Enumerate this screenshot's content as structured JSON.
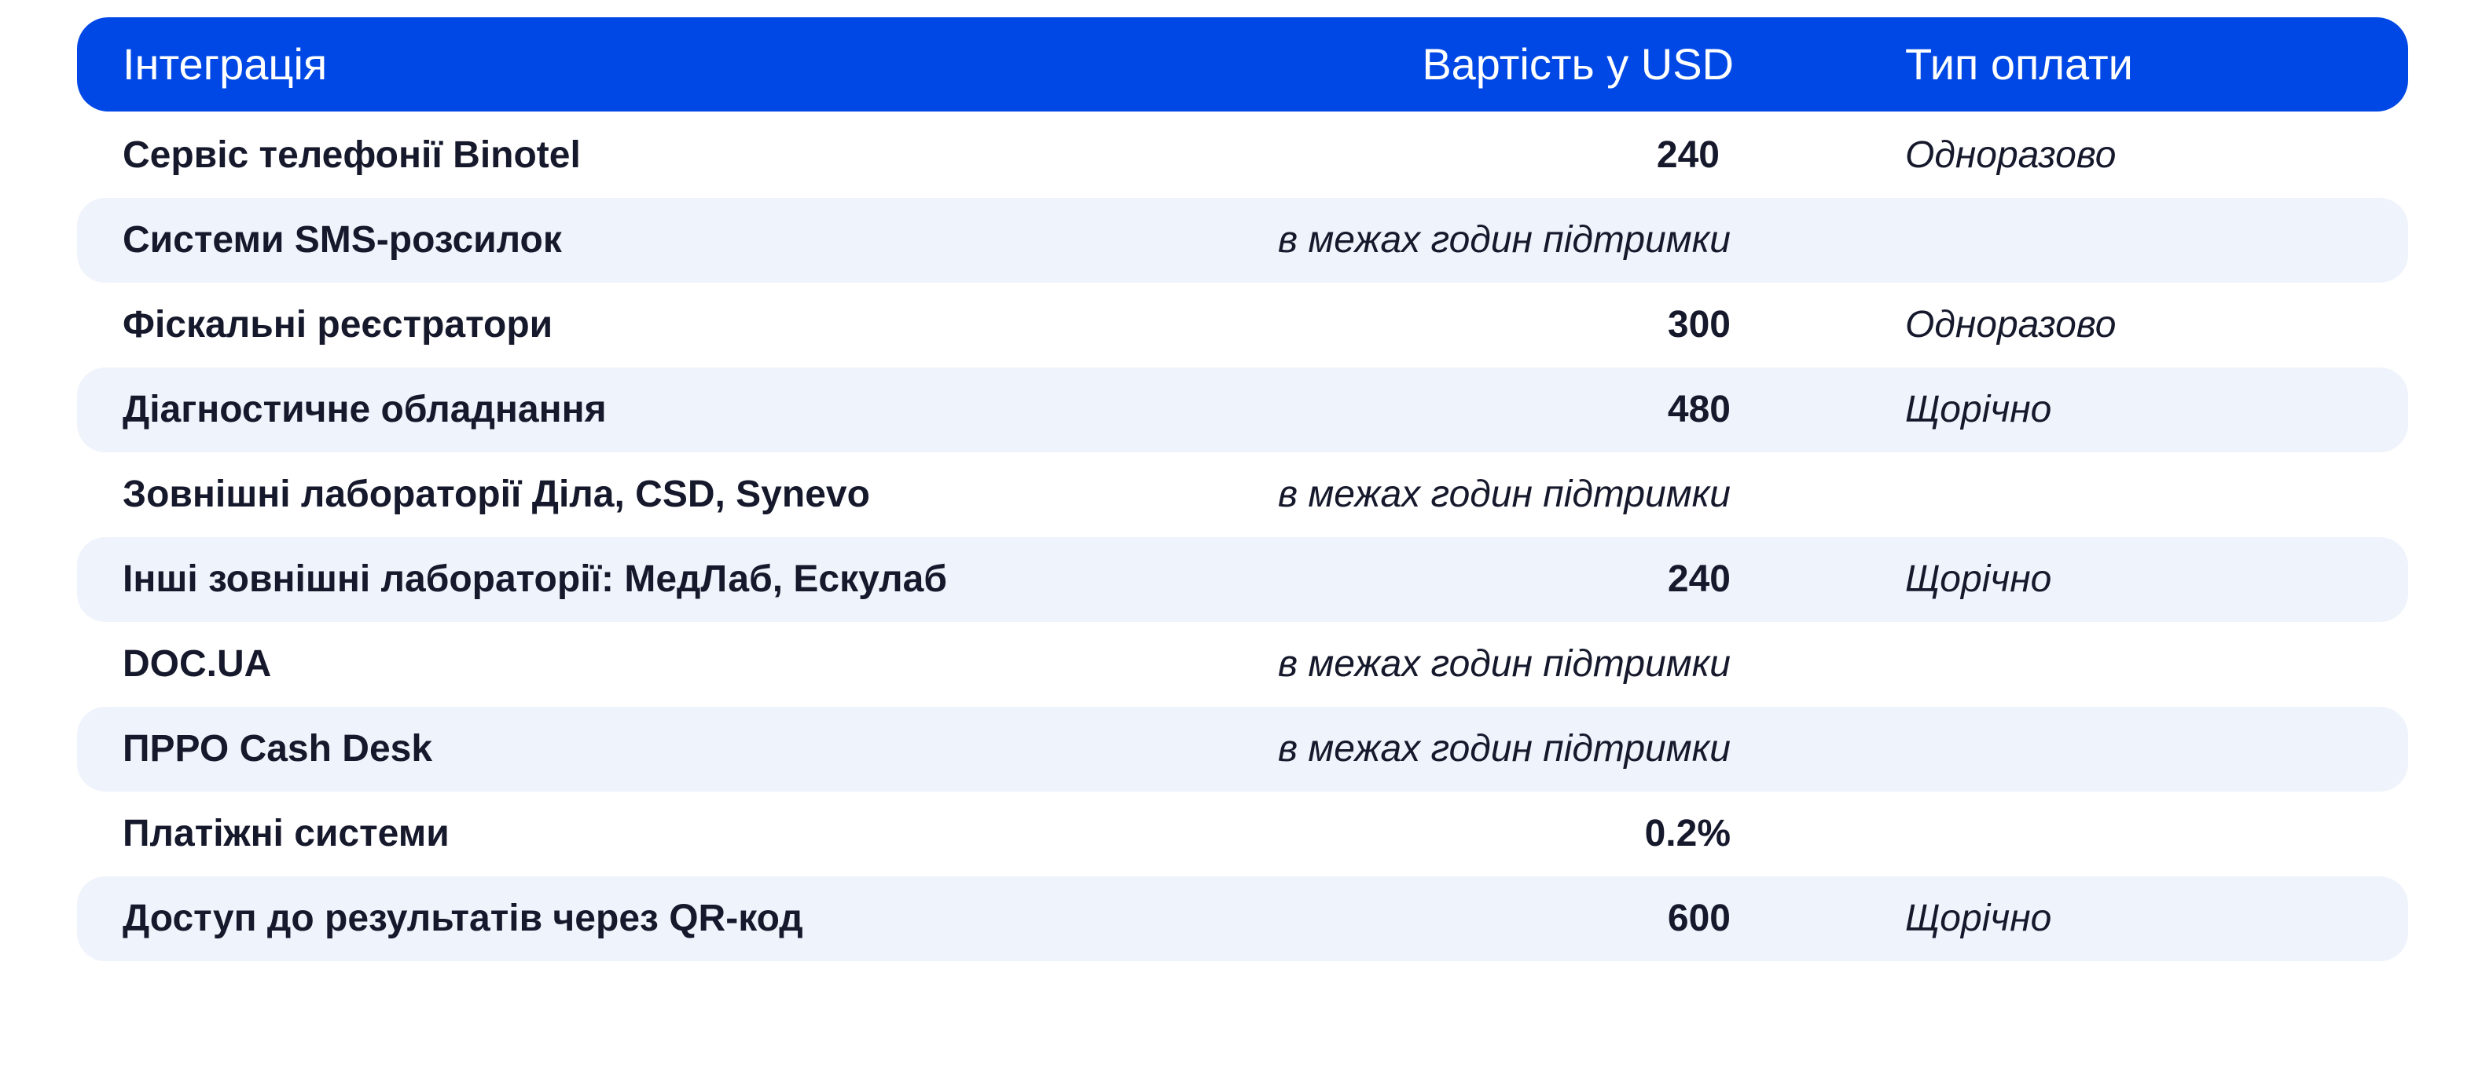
{
  "header": {
    "integration": "Інтеграція",
    "cost": "Вартість у USD",
    "payment": "Тип оплати"
  },
  "rows": [
    {
      "name": "Сервіс телефонії Binotel",
      "cost": "240",
      "cost_is_text": false,
      "payment": "Одноразово"
    },
    {
      "name": "Системи SMS-розсилок",
      "cost": "в межах годин підтримки",
      "cost_is_text": true,
      "payment": ""
    },
    {
      "name": "Фіскальні реєстратори",
      "cost": "300",
      "cost_is_text": false,
      "payment": "Одноразово"
    },
    {
      "name": "Діагностичне обладнання",
      "cost": "480",
      "cost_is_text": false,
      "payment": "Щорічно"
    },
    {
      "name": "Зовнішні лабораторії Діла, CSD, Synevo",
      "cost": "в межах годин підтримки",
      "cost_is_text": true,
      "payment": ""
    },
    {
      "name": "Інші зовнішні лабораторії: МедЛаб, Ескулаб",
      "cost": "240",
      "cost_is_text": false,
      "payment": "Щорічно"
    },
    {
      "name": "DOC.UA",
      "cost": "в межах годин підтримки",
      "cost_is_text": true,
      "payment": ""
    },
    {
      "name": "ПРРО Cash Desk",
      "cost": "в межах годин підтримки",
      "cost_is_text": true,
      "payment": ""
    },
    {
      "name": "Платіжні системи",
      "cost": "0.2%",
      "cost_is_text": false,
      "payment": ""
    },
    {
      "name": "Доступ до результатів через QR-код",
      "cost": "600",
      "cost_is_text": false,
      "payment": "Щорічно"
    }
  ],
  "colors": {
    "header_bg": "#0048e6",
    "alt_row_bg": "#eff3fb",
    "text": "#16192c"
  }
}
